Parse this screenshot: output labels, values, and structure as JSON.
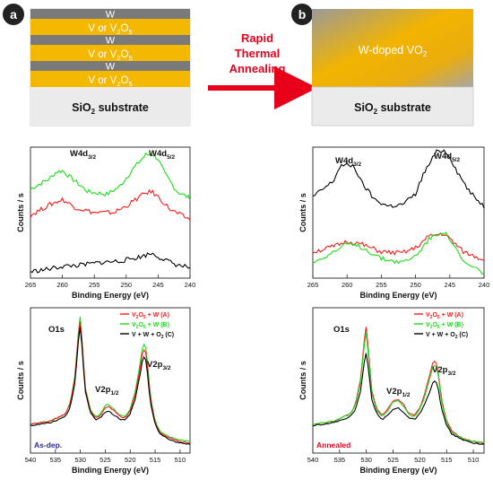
{
  "panel_a": {
    "badge": "a"
  },
  "panel_b": {
    "badge": "b"
  },
  "stack": {
    "w_label": "W",
    "layer_label": "V or V",
    "layer_sub": "2",
    "layer_tail": "O",
    "layer_sub2": "5",
    "substrate": "SiO",
    "substrate_sub": "2",
    "substrate_tail": " substrate"
  },
  "annealed_stack": {
    "doped_main": "W-doped VO",
    "doped_sub": "2",
    "substrate": "SiO",
    "substrate_sub": "2",
    "substrate_tail": " substrate"
  },
  "process": {
    "line1": "Rapid",
    "line2": "Thermal",
    "line3": "Annealing"
  },
  "colors": {
    "sample_A": "#ff1a1a",
    "sample_B": "#1adf1a",
    "sample_C": "#000000",
    "metal_layer": "#f5b800",
    "w_layer": "#777777",
    "arrow": "#e8001a",
    "corner_label": "#2a2a9a"
  },
  "legend": [
    {
      "pre": "V",
      "s1": "2",
      "mid": "O",
      "s2": "5",
      "post": " + W (A)",
      "color": "#ff1a1a"
    },
    {
      "pre": "V",
      "s1": "2",
      "mid": "O",
      "s2": "5",
      "post": " + W (B)",
      "color": "#1adf1a"
    },
    {
      "pre": "V + W + O",
      "s1": "2",
      "mid": "",
      "s2": "",
      "post": " (C)",
      "color": "#000000"
    }
  ],
  "chart_data": [
    {
      "type": "line",
      "panel": "a-top",
      "xlabel": "Binding Energy (eV)",
      "ylabel": "Counts / s",
      "xlim": [
        265,
        240
      ],
      "xticks": [
        265,
        260,
        255,
        250,
        245,
        240
      ],
      "peaks": [
        {
          "main": "W4d",
          "sub": "3/2"
        },
        {
          "main": "W4d",
          "sub": "5/2"
        }
      ],
      "series": [
        {
          "color": "#1adf1a",
          "x": [
            265,
            262,
            261,
            260,
            258,
            256,
            253,
            251,
            249,
            247,
            246,
            245,
            244,
            242,
            240
          ],
          "y": [
            0.68,
            0.76,
            0.81,
            0.82,
            0.74,
            0.66,
            0.64,
            0.7,
            0.83,
            0.94,
            0.95,
            0.91,
            0.8,
            0.66,
            0.61
          ]
        },
        {
          "color": "#ff1a1a",
          "x": [
            265,
            262,
            260,
            258,
            255,
            252,
            250,
            247,
            246,
            245,
            243,
            241,
            240
          ],
          "y": [
            0.48,
            0.56,
            0.6,
            0.54,
            0.5,
            0.5,
            0.55,
            0.65,
            0.66,
            0.62,
            0.52,
            0.47,
            0.45
          ]
        },
        {
          "color": "#000000",
          "x": [
            265,
            262,
            260,
            257,
            254,
            251,
            248,
            246,
            244,
            242,
            240
          ],
          "y": [
            0.05,
            0.07,
            0.09,
            0.1,
            0.12,
            0.13,
            0.16,
            0.19,
            0.14,
            0.1,
            0.08
          ]
        }
      ]
    },
    {
      "type": "line",
      "panel": "b-top",
      "xlabel": "Binding Energy (eV)",
      "ylabel": "Counts / s",
      "xlim": [
        265,
        240
      ],
      "xticks": [
        265,
        260,
        255,
        250,
        245,
        240
      ],
      "peaks": [
        {
          "main": "W4d",
          "sub": "3/2"
        },
        {
          "main": "W4d",
          "sub": "5/2"
        }
      ],
      "series": [
        {
          "color": "#000000",
          "x": [
            265,
            262,
            261,
            259,
            258,
            256,
            254,
            252,
            250,
            249,
            247,
            246,
            245,
            244,
            242,
            240
          ],
          "y": [
            0.62,
            0.74,
            0.86,
            0.86,
            0.74,
            0.6,
            0.55,
            0.56,
            0.64,
            0.78,
            0.96,
            0.98,
            0.93,
            0.82,
            0.65,
            0.55
          ]
        },
        {
          "color": "#ff1a1a",
          "x": [
            265,
            262,
            260,
            258,
            255,
            252,
            250,
            248,
            246,
            245,
            243,
            240
          ],
          "y": [
            0.2,
            0.24,
            0.28,
            0.26,
            0.2,
            0.19,
            0.23,
            0.32,
            0.34,
            0.3,
            0.2,
            0.14
          ]
        },
        {
          "color": "#1adf1a",
          "x": [
            265,
            262,
            260,
            258,
            255,
            252,
            250,
            248,
            246,
            245,
            243,
            240
          ],
          "y": [
            0.12,
            0.2,
            0.26,
            0.24,
            0.15,
            0.12,
            0.17,
            0.3,
            0.36,
            0.3,
            0.12,
            0.04
          ]
        }
      ]
    },
    {
      "type": "line",
      "panel": "a-bottom",
      "xlabel": "Binding Energy (eV)",
      "ylabel": "Counts / s",
      "xlim": [
        540,
        508
      ],
      "xticks": [
        540,
        535,
        530,
        525,
        520,
        515,
        510
      ],
      "corner_label": "As-dep.",
      "peaks": [
        {
          "main": "O1s",
          "sub": ""
        },
        {
          "main": "V2p",
          "sub": "1/2"
        },
        {
          "main": "V2p",
          "sub": "3/2"
        }
      ],
      "series": [
        {
          "color": "#1adf1a",
          "x": [
            540,
            536,
            533,
            532,
            531,
            530.5,
            530,
            529.5,
            529,
            528,
            527,
            526,
            525,
            524.5,
            523.5,
            522,
            521,
            520,
            519,
            518,
            517.5,
            517,
            516.5,
            516,
            515,
            514,
            512,
            510,
            508
          ],
          "y": [
            0.2,
            0.22,
            0.27,
            0.35,
            0.55,
            0.8,
            0.95,
            0.7,
            0.45,
            0.3,
            0.25,
            0.27,
            0.33,
            0.34,
            0.31,
            0.26,
            0.25,
            0.3,
            0.42,
            0.62,
            0.74,
            0.76,
            0.62,
            0.4,
            0.22,
            0.15,
            0.11,
            0.09,
            0.08
          ]
        },
        {
          "color": "#ff1a1a",
          "x": [
            540,
            536,
            533,
            532,
            531,
            530.5,
            530,
            529.5,
            529,
            528,
            527,
            526,
            525,
            524.5,
            523.5,
            522,
            521,
            520,
            519,
            518,
            517.5,
            517,
            516.5,
            516,
            515,
            514,
            512,
            510,
            508
          ],
          "y": [
            0.2,
            0.22,
            0.27,
            0.34,
            0.53,
            0.77,
            0.92,
            0.68,
            0.44,
            0.29,
            0.24,
            0.26,
            0.31,
            0.32,
            0.3,
            0.25,
            0.24,
            0.29,
            0.4,
            0.58,
            0.7,
            0.72,
            0.58,
            0.38,
            0.21,
            0.14,
            0.1,
            0.08,
            0.07
          ]
        },
        {
          "color": "#000000",
          "x": [
            540,
            536,
            533,
            532,
            531,
            530.5,
            530,
            529.5,
            529,
            528,
            527,
            526,
            525,
            524.5,
            523.5,
            522,
            521,
            520,
            519,
            518,
            517.5,
            517,
            516.5,
            516,
            515,
            514,
            512,
            510,
            508
          ],
          "y": [
            0.19,
            0.21,
            0.25,
            0.32,
            0.5,
            0.74,
            0.88,
            0.65,
            0.42,
            0.28,
            0.23,
            0.24,
            0.28,
            0.29,
            0.27,
            0.23,
            0.23,
            0.27,
            0.37,
            0.54,
            0.65,
            0.67,
            0.54,
            0.35,
            0.2,
            0.13,
            0.09,
            0.07,
            0.06
          ]
        }
      ]
    },
    {
      "type": "line",
      "panel": "b-bottom",
      "xlabel": "Binding Energy (eV)",
      "ylabel": "Counts / s",
      "xlim": [
        540,
        508
      ],
      "xticks": [
        540,
        535,
        530,
        525,
        520,
        515,
        510
      ],
      "corner_label": "Annealed",
      "peaks": [
        {
          "main": "O1s",
          "sub": ""
        },
        {
          "main": "V2p",
          "sub": "1/2"
        },
        {
          "main": "V2p",
          "sub": "3/2"
        }
      ],
      "series": [
        {
          "color": "#ff1a1a",
          "x": [
            540,
            536,
            533,
            532,
            531,
            530.5,
            530,
            529.5,
            529,
            528,
            527,
            526,
            525,
            524,
            523,
            522,
            521,
            520,
            519,
            518,
            517.5,
            517,
            516.5,
            516,
            515,
            514,
            512,
            510,
            508
          ],
          "y": [
            0.2,
            0.22,
            0.27,
            0.34,
            0.52,
            0.74,
            0.88,
            0.66,
            0.43,
            0.3,
            0.26,
            0.3,
            0.36,
            0.37,
            0.33,
            0.27,
            0.26,
            0.31,
            0.42,
            0.56,
            0.63,
            0.64,
            0.54,
            0.38,
            0.22,
            0.15,
            0.1,
            0.08,
            0.07
          ]
        },
        {
          "color": "#1adf1a",
          "x": [
            540,
            536,
            533,
            532,
            531,
            530.5,
            530,
            529.5,
            529,
            528,
            527,
            526,
            525,
            524,
            523,
            522,
            521,
            520,
            519,
            518,
            517.5,
            517,
            516.5,
            516,
            515,
            514,
            512,
            510,
            508
          ],
          "y": [
            0.2,
            0.22,
            0.27,
            0.33,
            0.5,
            0.71,
            0.84,
            0.63,
            0.41,
            0.29,
            0.25,
            0.29,
            0.35,
            0.36,
            0.32,
            0.26,
            0.25,
            0.3,
            0.4,
            0.53,
            0.6,
            0.61,
            0.52,
            0.36,
            0.21,
            0.14,
            0.1,
            0.08,
            0.07
          ]
        },
        {
          "color": "#000000",
          "x": [
            540,
            536,
            533,
            532,
            531,
            530.5,
            530,
            529.5,
            529,
            528,
            527,
            526,
            525,
            524,
            523,
            522,
            521,
            520,
            519,
            518,
            517.5,
            517,
            516.5,
            516,
            515,
            514,
            512,
            510,
            508
          ],
          "y": [
            0.19,
            0.21,
            0.25,
            0.3,
            0.44,
            0.6,
            0.7,
            0.54,
            0.37,
            0.27,
            0.23,
            0.26,
            0.3,
            0.31,
            0.28,
            0.24,
            0.23,
            0.27,
            0.34,
            0.44,
            0.49,
            0.5,
            0.43,
            0.31,
            0.19,
            0.13,
            0.09,
            0.07,
            0.06
          ]
        }
      ]
    }
  ]
}
